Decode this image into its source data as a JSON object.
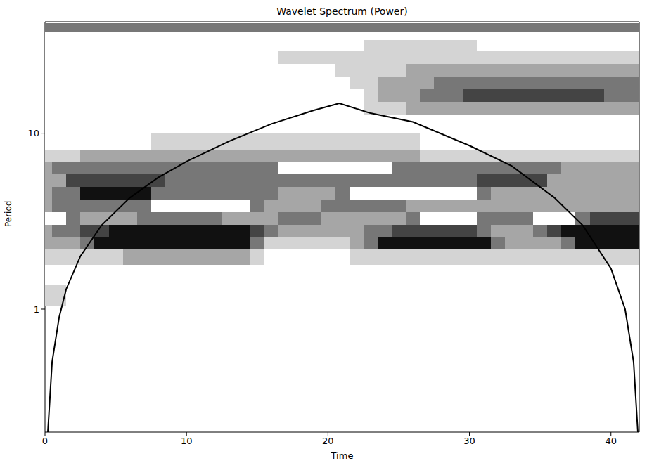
{
  "chart_data": {
    "type": "heatmap",
    "title": "Wavelet Spectrum (Power)",
    "xlabel": "Time",
    "ylabel": "Period",
    "log": "y",
    "xlim": [
      0,
      42
    ],
    "xticks": [
      0,
      10,
      20,
      30,
      40
    ],
    "ylim": [
      0.2,
      43
    ],
    "yticks": [
      1,
      10
    ],
    "times": [
      0,
      1,
      2,
      3,
      4,
      5,
      6,
      7,
      8,
      9,
      10,
      11,
      12,
      13,
      14,
      15,
      16,
      17,
      18,
      19,
      20,
      21,
      22,
      23,
      24,
      25,
      26,
      27,
      28,
      29,
      30,
      31,
      32,
      33,
      34,
      35,
      36,
      37,
      38,
      39,
      40,
      41,
      42
    ],
    "periods": [
      1.2,
      1.6,
      2.0,
      2.4,
      2.8,
      3.3,
      3.9,
      4.6,
      5.4,
      6.4,
      7.5,
      8.8,
      11.5,
      14,
      16.5,
      19.5,
      23,
      27,
      32,
      36,
      40
    ],
    "power": [
      [
        1,
        1,
        0,
        0,
        0,
        0,
        0,
        0,
        0,
        0,
        0,
        0,
        0,
        0,
        0,
        0,
        0,
        0,
        0,
        0,
        0,
        0,
        0,
        0,
        0,
        0,
        0,
        0,
        0,
        0,
        0,
        0,
        0,
        0,
        0,
        0,
        0,
        0,
        0,
        0,
        0,
        0,
        0
      ],
      [
        0,
        0,
        0,
        0,
        0,
        0,
        0,
        0,
        0,
        0,
        0,
        0,
        0,
        0,
        0,
        0,
        0,
        0,
        0,
        0,
        0,
        0,
        0,
        0,
        0,
        0,
        0,
        0,
        0,
        0,
        0,
        0,
        0,
        0,
        0,
        0,
        0,
        0,
        0,
        0,
        0,
        0,
        0
      ],
      [
        1,
        1,
        1,
        1,
        1,
        1,
        2,
        2,
        2,
        2,
        2,
        2,
        2,
        2,
        2,
        1,
        0,
        0,
        0,
        0,
        0,
        0,
        1,
        1,
        1,
        1,
        1,
        1,
        1,
        1,
        1,
        1,
        1,
        1,
        1,
        1,
        1,
        1,
        1,
        1,
        1,
        1,
        1
      ],
      [
        2,
        2,
        2,
        3,
        5,
        5,
        5,
        5,
        5,
        5,
        5,
        5,
        5,
        5,
        5,
        3,
        1,
        1,
        1,
        1,
        1,
        1,
        2,
        3,
        5,
        5,
        5,
        5,
        5,
        5,
        5,
        5,
        3,
        2,
        2,
        2,
        2,
        3,
        5,
        5,
        5,
        5,
        5
      ],
      [
        2,
        3,
        3,
        4,
        4,
        5,
        5,
        5,
        5,
        5,
        5,
        5,
        5,
        5,
        5,
        4,
        3,
        2,
        2,
        2,
        2,
        2,
        2,
        3,
        3,
        4,
        4,
        4,
        4,
        4,
        4,
        3,
        2,
        2,
        2,
        3,
        4,
        5,
        5,
        5,
        5,
        5,
        5
      ],
      [
        6,
        6,
        3,
        2,
        2,
        2,
        2,
        3,
        3,
        3,
        3,
        3,
        3,
        2,
        2,
        2,
        2,
        3,
        3,
        3,
        2,
        2,
        2,
        2,
        2,
        2,
        3,
        6,
        6,
        6,
        6,
        3,
        3,
        3,
        3,
        6,
        6,
        6,
        3,
        4,
        4,
        4,
        4
      ],
      [
        2,
        3,
        3,
        3,
        3,
        3,
        3,
        3,
        6,
        6,
        6,
        6,
        6,
        6,
        6,
        3,
        2,
        2,
        2,
        2,
        3,
        3,
        3,
        3,
        3,
        3,
        2,
        2,
        2,
        2,
        2,
        2,
        2,
        2,
        2,
        2,
        2,
        2,
        2,
        2,
        2,
        2,
        2
      ],
      [
        2,
        3,
        3,
        5,
        5,
        5,
        5,
        5,
        3,
        3,
        3,
        3,
        3,
        3,
        3,
        3,
        3,
        2,
        2,
        2,
        2,
        3,
        6,
        6,
        6,
        6,
        6,
        6,
        6,
        6,
        6,
        3,
        2,
        2,
        2,
        2,
        2,
        2,
        2,
        2,
        2,
        2,
        2
      ],
      [
        2,
        2,
        4,
        4,
        4,
        4,
        4,
        4,
        4,
        3,
        3,
        3,
        3,
        3,
        3,
        3,
        3,
        3,
        3,
        3,
        3,
        3,
        3,
        3,
        3,
        3,
        3,
        3,
        3,
        3,
        3,
        4,
        4,
        4,
        4,
        4,
        2,
        2,
        2,
        2,
        2,
        2,
        2
      ],
      [
        2,
        3,
        3,
        3,
        3,
        3,
        3,
        3,
        3,
        3,
        3,
        3,
        3,
        3,
        3,
        3,
        3,
        6,
        6,
        6,
        6,
        6,
        6,
        6,
        6,
        3,
        3,
        3,
        3,
        3,
        3,
        3,
        3,
        3,
        3,
        3,
        3,
        2,
        2,
        2,
        2,
        2,
        2
      ],
      [
        1,
        1,
        1,
        2,
        2,
        2,
        2,
        2,
        2,
        2,
        2,
        2,
        2,
        2,
        2,
        2,
        2,
        2,
        2,
        2,
        2,
        2,
        2,
        2,
        2,
        2,
        2,
        1,
        1,
        1,
        1,
        1,
        1,
        1,
        1,
        1,
        1,
        1,
        1,
        1,
        1,
        1,
        1
      ],
      [
        0,
        0,
        0,
        0,
        0,
        0,
        0,
        0,
        1,
        1,
        1,
        1,
        1,
        1,
        1,
        1,
        1,
        1,
        1,
        1,
        1,
        1,
        1,
        1,
        1,
        1,
        1,
        0,
        0,
        0,
        0,
        0,
        0,
        0,
        0,
        0,
        0,
        0,
        0,
        0,
        0,
        0,
        0
      ],
      [
        0,
        0,
        0,
        0,
        0,
        0,
        0,
        0,
        0,
        0,
        0,
        0,
        0,
        0,
        0,
        0,
        0,
        0,
        0,
        0,
        0,
        0,
        0,
        0,
        0,
        0,
        0,
        0,
        0,
        0,
        0,
        0,
        0,
        0,
        0,
        0,
        0,
        0,
        0,
        0,
        0,
        0,
        0
      ],
      [
        0,
        0,
        0,
        0,
        0,
        0,
        0,
        0,
        0,
        0,
        0,
        0,
        0,
        0,
        0,
        0,
        0,
        0,
        0,
        0,
        0,
        0,
        0,
        1,
        1,
        1,
        2,
        2,
        2,
        2,
        2,
        2,
        2,
        2,
        2,
        2,
        2,
        2,
        2,
        2,
        2,
        2,
        2
      ],
      [
        0,
        0,
        0,
        0,
        0,
        0,
        0,
        0,
        0,
        0,
        0,
        0,
        0,
        0,
        0,
        0,
        0,
        0,
        0,
        0,
        0,
        0,
        0,
        1,
        2,
        2,
        2,
        3,
        3,
        3,
        4,
        4,
        4,
        4,
        4,
        4,
        4,
        4,
        4,
        4,
        3,
        3,
        3
      ],
      [
        0,
        0,
        0,
        0,
        0,
        0,
        0,
        0,
        0,
        0,
        0,
        0,
        0,
        0,
        0,
        0,
        0,
        0,
        0,
        0,
        0,
        0,
        1,
        1,
        2,
        2,
        2,
        2,
        3,
        3,
        3,
        3,
        3,
        3,
        3,
        3,
        3,
        3,
        3,
        3,
        3,
        3,
        3
      ],
      [
        0,
        0,
        0,
        0,
        0,
        0,
        0,
        0,
        0,
        0,
        0,
        0,
        0,
        0,
        0,
        0,
        0,
        0,
        0,
        0,
        0,
        1,
        1,
        1,
        1,
        1,
        2,
        2,
        2,
        2,
        2,
        2,
        2,
        2,
        2,
        2,
        2,
        2,
        2,
        2,
        2,
        2,
        2
      ],
      [
        0,
        0,
        0,
        0,
        0,
        0,
        0,
        0,
        0,
        0,
        0,
        0,
        0,
        0,
        0,
        0,
        0,
        1,
        1,
        1,
        1,
        1,
        1,
        1,
        1,
        1,
        1,
        1,
        1,
        1,
        1,
        1,
        1,
        1,
        1,
        1,
        1,
        1,
        1,
        1,
        1,
        1,
        1
      ],
      [
        0,
        0,
        0,
        0,
        0,
        0,
        0,
        0,
        0,
        0,
        0,
        0,
        0,
        0,
        0,
        0,
        0,
        0,
        0,
        0,
        0,
        0,
        0,
        1,
        1,
        1,
        1,
        1,
        1,
        1,
        1,
        0,
        0,
        0,
        0,
        0,
        0,
        0,
        0,
        0,
        0,
        0,
        0
      ],
      [
        0,
        0,
        0,
        0,
        0,
        0,
        0,
        0,
        0,
        0,
        0,
        0,
        0,
        0,
        0,
        0,
        0,
        0,
        0,
        0,
        0,
        0,
        0,
        0,
        0,
        0,
        0,
        0,
        0,
        0,
        0,
        0,
        0,
        0,
        0,
        0,
        0,
        0,
        0,
        0,
        0,
        0,
        0
      ],
      [
        3,
        3,
        3,
        3,
        3,
        3,
        3,
        3,
        3,
        3,
        3,
        3,
        3,
        3,
        3,
        3,
        3,
        3,
        3,
        3,
        3,
        3,
        3,
        3,
        3,
        3,
        3,
        3,
        3,
        3,
        3,
        3,
        3,
        3,
        3,
        3,
        3,
        3,
        3,
        3,
        3,
        3,
        3
      ]
    ],
    "cone_of_influence": {
      "x": [
        0.2,
        0.5,
        1,
        1.5,
        2.5,
        4,
        6,
        8,
        10,
        13,
        16,
        19,
        20.8,
        23,
        26,
        30,
        33,
        36,
        38,
        40,
        41,
        41.6,
        41.9
      ],
      "period": [
        0.2,
        0.5,
        0.9,
        1.3,
        2,
        3,
        4.3,
        5.6,
        6.9,
        9,
        11.3,
        13.5,
        14.8,
        13,
        11.6,
        8.5,
        6.5,
        4.3,
        3,
        1.7,
        1,
        0.5,
        0.2
      ]
    }
  }
}
